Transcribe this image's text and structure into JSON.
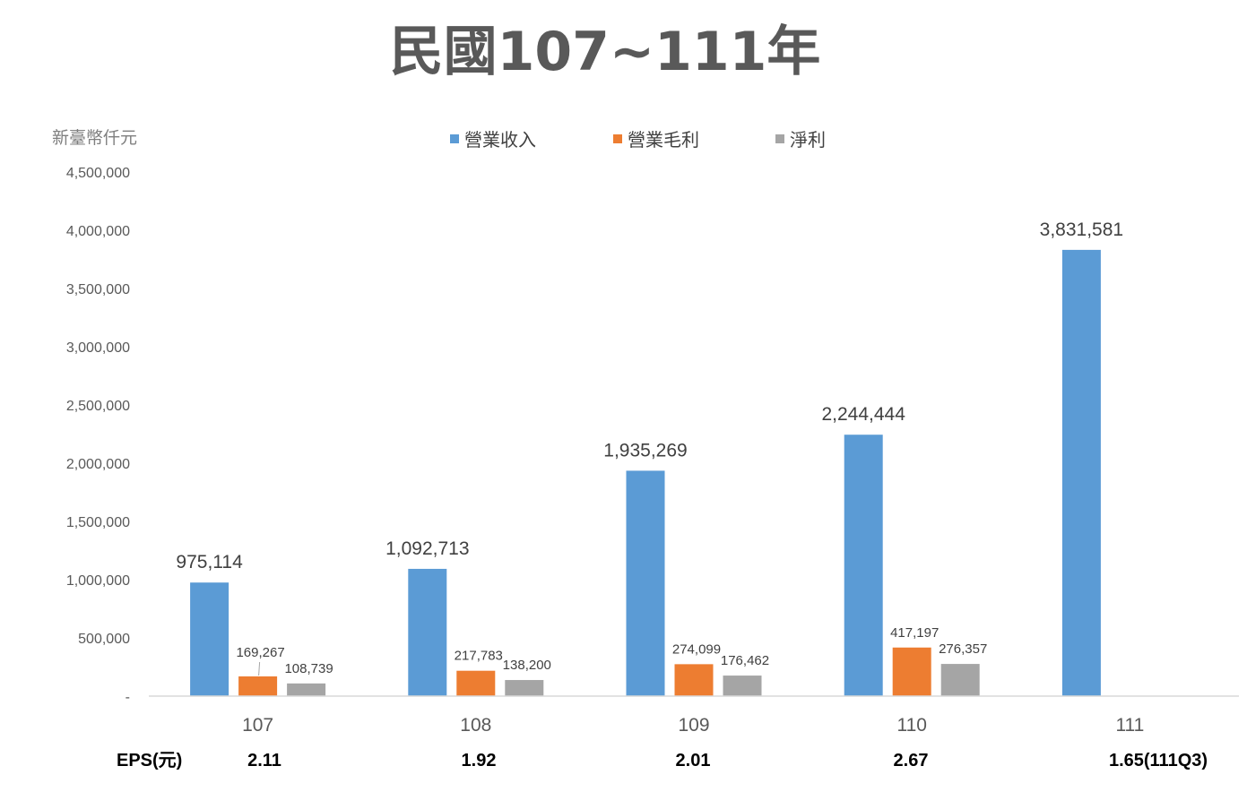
{
  "chart_data": {
    "type": "bar",
    "title": "民國107~111年",
    "unit_label": "新臺幣仟元",
    "categories": [
      "107",
      "108",
      "109",
      "110",
      "111"
    ],
    "series": [
      {
        "name": "營業收入",
        "color": "#5b9bd5",
        "values": [
          975114,
          1092713,
          1935269,
          2244444,
          3831581
        ],
        "labels": [
          "975,114",
          "1,092,713",
          "1,935,269",
          "2,244,444",
          "3,831,581"
        ]
      },
      {
        "name": "營業毛利",
        "color": "#ed7d31",
        "values": [
          169267,
          217783,
          274099,
          417197,
          null
        ],
        "labels": [
          "169,267",
          "217,783",
          "274,099",
          "417,197",
          ""
        ]
      },
      {
        "name": "淨利",
        "color": "#a5a5a5",
        "values": [
          108739,
          138200,
          176462,
          276357,
          null
        ],
        "labels": [
          "108,739",
          "138,200",
          "176,462",
          "276,357",
          ""
        ]
      }
    ],
    "ylim": [
      0,
      4500000
    ],
    "yticks": [
      0,
      500000,
      1000000,
      1500000,
      2000000,
      2500000,
      3000000,
      3500000,
      4000000,
      4500000
    ],
    "ytick_labels": [
      "-",
      "500,000",
      "1,000,000",
      "1,500,000",
      "2,000,000",
      "2,500,000",
      "3,000,000",
      "3,500,000",
      "4,000,000",
      "4,500,000"
    ],
    "legend_position": "top-center",
    "grid": false
  },
  "eps": {
    "label": "EPS(元)",
    "values": [
      "2.11",
      "1.92",
      "2.01",
      "2.67",
      "1.65(111Q3)"
    ]
  }
}
